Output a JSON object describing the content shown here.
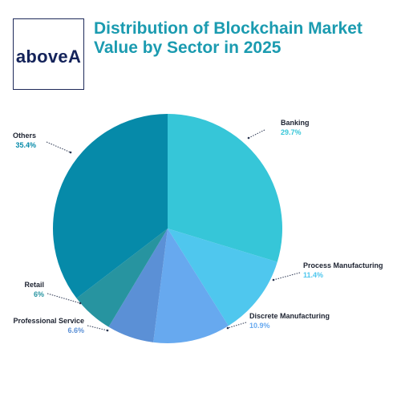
{
  "brand": {
    "logo_text": "aboveA"
  },
  "header": {
    "title_line1": "Distribution of Blockchain Market",
    "title_line2": "Value by Sector in 2025"
  },
  "chart_data": {
    "type": "pie",
    "title": "Distribution of Blockchain Market Value by Sector in 2025",
    "slices": [
      {
        "label": "Banking",
        "value_label": "29.7%",
        "value": 29.7,
        "color": "#36c6d8"
      },
      {
        "label": "Process Manufacturing",
        "value_label": "11.4%",
        "value": 11.4,
        "color": "#4fc7ee"
      },
      {
        "label": "Discrete Manufacturing",
        "value_label": "10.9%",
        "value": 10.9,
        "color": "#67a9ef"
      },
      {
        "label": "Professional Service",
        "value_label": "6.6%",
        "value": 6.6,
        "color": "#5b90d6"
      },
      {
        "label": "Retail",
        "value_label": "6%",
        "value": 6,
        "color": "#2794a0"
      },
      {
        "label": "Others",
        "value_label": "35.4%",
        "value": 35.4,
        "color": "#068aa9"
      }
    ]
  }
}
